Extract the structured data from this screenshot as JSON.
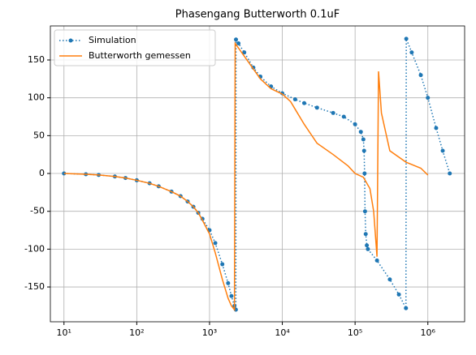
{
  "chart_data": {
    "type": "line",
    "title": "Phasengang Butterworth 0.1uF",
    "xscale": "log",
    "grid": true,
    "legend": "upper left",
    "xlim": [
      6.5,
      3200000
    ],
    "ylim": [
      -196,
      195
    ],
    "xticks": [
      {
        "value": 10,
        "label": "10¹"
      },
      {
        "value": 100,
        "label": "10²"
      },
      {
        "value": 1000,
        "label": "10³"
      },
      {
        "value": 10000,
        "label": "10⁴"
      },
      {
        "value": 100000,
        "label": "10⁵"
      },
      {
        "value": 1000000,
        "label": "10⁶"
      }
    ],
    "yticks": [
      -150,
      -100,
      -50,
      0,
      50,
      100,
      150
    ],
    "series": [
      {
        "name": "Simulation",
        "color": "#1f77b4",
        "style": "dotted",
        "marker": true,
        "x": [
          10,
          20,
          30,
          50,
          70,
          100,
          150,
          200,
          300,
          400,
          500,
          600,
          700,
          800,
          1000,
          1200,
          1500,
          1800,
          2000,
          2200,
          2300,
          2310,
          2500,
          3000,
          4000,
          5000,
          7000,
          10000,
          15000,
          20000,
          30000,
          50000,
          70000,
          100000,
          120000,
          130000,
          133000,
          135000,
          137000,
          140000,
          145000,
          150000,
          200000,
          300000,
          400000,
          500000,
          505000,
          600000,
          800000,
          1000000,
          1300000,
          1600000,
          2000000
        ],
        "values": [
          0,
          -1,
          -2,
          -4,
          -6,
          -9,
          -13,
          -17,
          -24,
          -30,
          -37,
          -44,
          -52,
          -60,
          -75,
          -92,
          -120,
          -145,
          -162,
          -175,
          -180,
          177,
          172,
          160,
          140,
          128,
          115,
          106,
          98,
          93,
          87,
          80,
          75,
          65,
          55,
          45,
          30,
          0,
          -50,
          -80,
          -95,
          -100,
          -115,
          -140,
          -160,
          -178,
          178,
          160,
          130,
          100,
          60,
          30,
          0
        ]
      },
      {
        "name": "Butterworth gemessen",
        "color": "#ff7f0e",
        "style": "solid",
        "marker": false,
        "x": [
          10,
          20,
          30,
          50,
          70,
          100,
          150,
          200,
          300,
          400,
          500,
          600,
          700,
          800,
          1000,
          1200,
          1500,
          1800,
          2000,
          2200,
          2250,
          3000,
          5000,
          7000,
          10000,
          13000,
          15000,
          20000,
          30000,
          50000,
          80000,
          100000,
          130000,
          160000,
          180000,
          200000,
          210000,
          230000,
          300000,
          500000,
          800000,
          1000000
        ],
        "values": [
          0,
          -1,
          -2,
          -4,
          -6,
          -9,
          -13,
          -17,
          -24,
          -30,
          -37,
          -44,
          -52,
          -62,
          -80,
          -105,
          -140,
          -165,
          -175,
          -180,
          172,
          155,
          125,
          112,
          105,
          95,
          85,
          65,
          40,
          25,
          10,
          0,
          -5,
          -20,
          -50,
          -110,
          135,
          80,
          30,
          15,
          7,
          -2
        ]
      }
    ]
  }
}
